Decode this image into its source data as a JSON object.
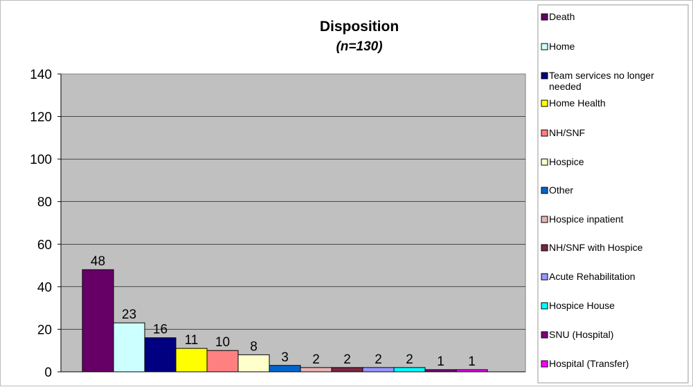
{
  "chart_data": {
    "type": "bar",
    "title": "Disposition",
    "subtitle": "(n=130)",
    "xlabel": "",
    "ylabel": "",
    "ylim": [
      0,
      140
    ],
    "yticks": [
      0,
      20,
      40,
      60,
      80,
      100,
      120,
      140
    ],
    "grid": true,
    "legend_position": "right",
    "categories": [
      "Death",
      "Home",
      "Team services no longer needed",
      "Home Health",
      "NH/SNF",
      "Hospice",
      "Other",
      "Hospice inpatient",
      "NH/SNF with Hospice",
      "Acute Rehabilitation",
      "Hospice House",
      "SNU (Hospital)",
      "Hospital (Transfer)"
    ],
    "values": [
      48,
      23,
      16,
      11,
      10,
      8,
      3,
      2,
      2,
      2,
      2,
      1,
      1
    ],
    "colors": [
      "#660066",
      "#ccffff",
      "#000080",
      "#ffff00",
      "#ff8080",
      "#ffffcc",
      "#0066cc",
      "#e8b4b4",
      "#7a2642",
      "#9999ff",
      "#00ffff",
      "#800080",
      "#ff00ff"
    ],
    "plot_background": "#c0c0c0"
  }
}
